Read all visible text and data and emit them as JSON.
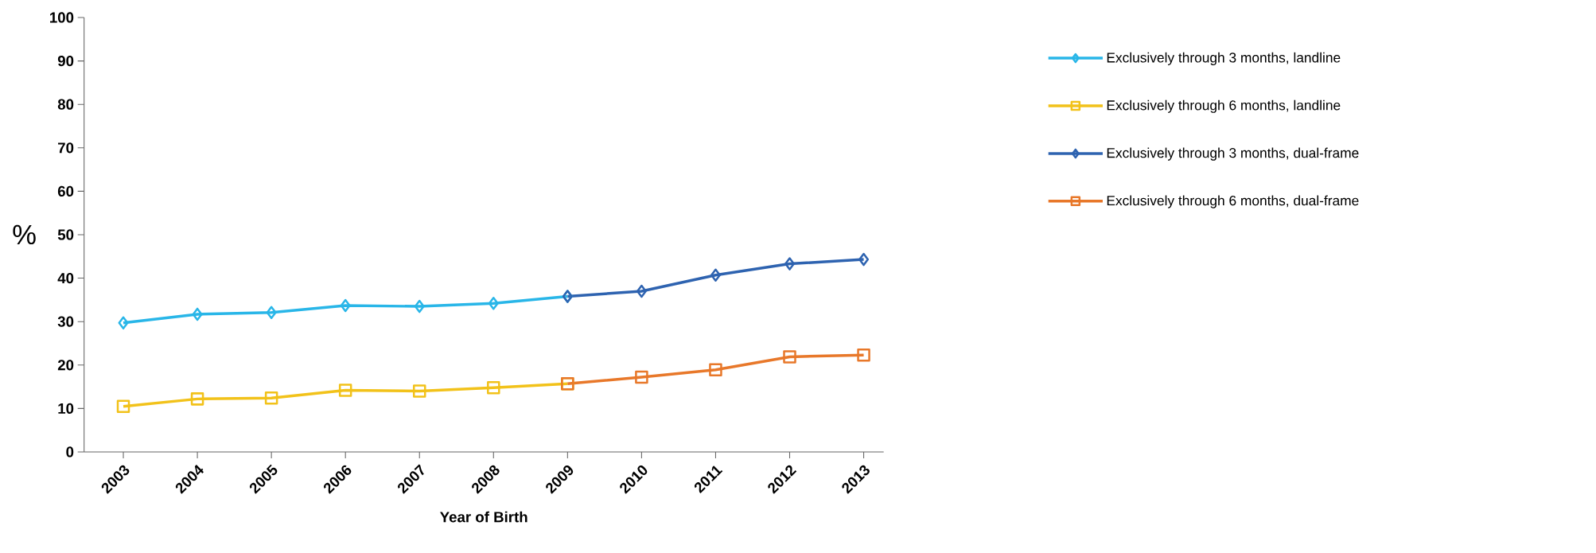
{
  "chart_data": {
    "type": "line",
    "xlabel": "Year of Birth",
    "ylabel": "%",
    "categories": [
      "2003",
      "2004",
      "2005",
      "2006",
      "2007",
      "2008",
      "2009",
      "2010",
      "2011",
      "2012",
      "2013"
    ],
    "ylim": [
      0,
      100
    ],
    "yticks": [
      0,
      10,
      20,
      30,
      40,
      50,
      60,
      70,
      80,
      90,
      100
    ],
    "grid": false,
    "legend": "right",
    "series": [
      {
        "name": "Exclusively through 3 months, landline",
        "color": "#29b6e8",
        "marker": "diamond",
        "values": [
          29.7,
          31.7,
          32.1,
          33.7,
          33.5,
          34.2,
          35.8,
          null,
          null,
          null,
          null
        ]
      },
      {
        "name": "Exclusively through 6 months, landline",
        "color": "#f2c21a",
        "marker": "square",
        "values": [
          10.5,
          12.2,
          12.4,
          14.2,
          14.0,
          14.8,
          15.7,
          null,
          null,
          null,
          null
        ]
      },
      {
        "name": "Exclusively through 3 months, dual-frame",
        "color": "#2e63b0",
        "marker": "diamond",
        "values": [
          null,
          null,
          null,
          null,
          null,
          null,
          35.8,
          37.0,
          40.7,
          43.3,
          44.3
        ]
      },
      {
        "name": "Exclusively through 6 months, dual-frame",
        "color": "#e8782a",
        "marker": "square",
        "values": [
          null,
          null,
          null,
          null,
          null,
          null,
          15.7,
          17.2,
          18.9,
          21.9,
          22.3
        ]
      }
    ]
  }
}
